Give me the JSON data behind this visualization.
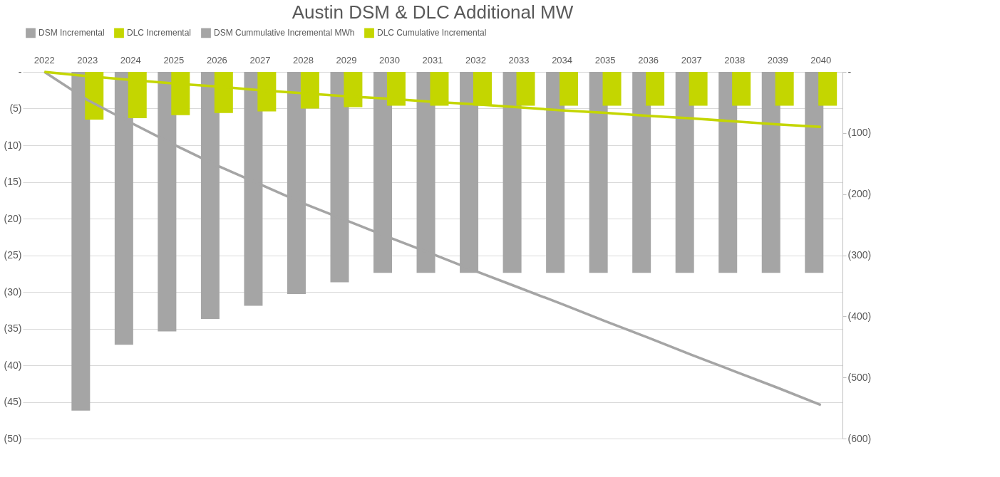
{
  "chart_data": {
    "type": "bar",
    "title": "Austin DSM & DLC Additional MW",
    "categories": [
      "2022",
      "2023",
      "2024",
      "2025",
      "2026",
      "2027",
      "2028",
      "2029",
      "2030",
      "2031",
      "2032",
      "2033",
      "2034",
      "2035",
      "2036",
      "2037",
      "2038",
      "2039",
      "2040"
    ],
    "series": [
      {
        "name": "DSM Incremental",
        "color": "#a5a5a5",
        "values": [
          null,
          -46.2,
          -37.2,
          -35.4,
          -33.7,
          -31.9,
          -30.3,
          -28.7,
          -27.4,
          -27.4,
          -27.4,
          -27.4,
          -27.4,
          -27.4,
          -27.4,
          -27.4,
          -27.4,
          -27.4,
          -27.4
        ]
      },
      {
        "name": "DLC Incremental",
        "color": "#c4d600",
        "values": [
          null,
          -6.5,
          -6.3,
          -5.9,
          -5.6,
          -5.4,
          -5.0,
          -4.8,
          -4.6,
          -4.6,
          -4.6,
          -4.6,
          -4.6,
          -4.6,
          -4.6,
          -4.6,
          -4.6,
          -4.6,
          -4.6
        ]
      },
      {
        "name": "DSM Cummulative Incremental MWh",
        "type": "line",
        "axis": "y2",
        "color": "#a5a5a5",
        "values": [
          0,
          -46,
          -83,
          -119,
          -153,
          -184,
          -215,
          -243,
          -271,
          -298,
          -326,
          -353,
          -380,
          -408,
          -435,
          -463,
          -490,
          -517,
          -545
        ]
      },
      {
        "name": "DLC Cumulative Incremental",
        "type": "line",
        "axis": "y2",
        "color": "#c4d600",
        "values": [
          0,
          -7,
          -13,
          -19,
          -24,
          -30,
          -35,
          -40,
          -44,
          -49,
          -53,
          -58,
          -63,
          -67,
          -72,
          -76,
          -81,
          -86,
          -90
        ]
      }
    ],
    "ylim": [
      -50,
      0
    ],
    "yticks": [
      {
        "value": 0,
        "label": "-"
      },
      {
        "value": -5,
        "label": "(5)"
      },
      {
        "value": -10,
        "label": "(10)"
      },
      {
        "value": -15,
        "label": "(15)"
      },
      {
        "value": -20,
        "label": "(20)"
      },
      {
        "value": -25,
        "label": "(25)"
      },
      {
        "value": -30,
        "label": "(30)"
      },
      {
        "value": -35,
        "label": "(35)"
      },
      {
        "value": -40,
        "label": "(40)"
      },
      {
        "value": -45,
        "label": "(45)"
      },
      {
        "value": -50,
        "label": "(50)"
      }
    ],
    "y2lim": [
      -600,
      0
    ],
    "y2ticks": [
      {
        "value": 0,
        "label": "-"
      },
      {
        "value": -100,
        "label": "(100)"
      },
      {
        "value": -200,
        "label": "(200)"
      },
      {
        "value": -300,
        "label": "(300)"
      },
      {
        "value": -400,
        "label": "(400)"
      },
      {
        "value": -500,
        "label": "(500)"
      },
      {
        "value": -600,
        "label": "(600)"
      }
    ],
    "grid": "y",
    "legend": "top",
    "line_style": "solid",
    "marker": "none"
  }
}
